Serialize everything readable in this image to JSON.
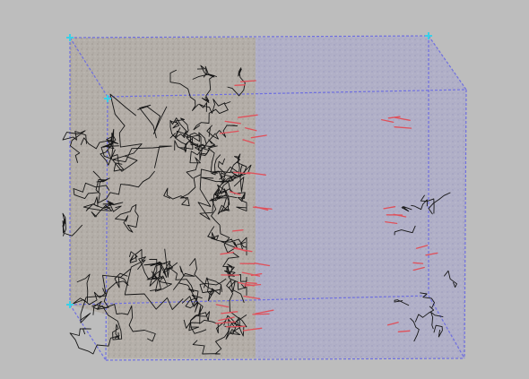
{
  "scene": {
    "description_visible_text": "",
    "colors": {
      "background": "#bdbdbd",
      "box_edges": "#6f6fe0",
      "box_corner_markers": "#39d0e8",
      "particle_region_left": "#b2aca6",
      "particle_region_right": "#aeadc6",
      "polymer_chains": "#151515",
      "end_groups": "#e0505a"
    },
    "icons": {
      "corner_marker": "cross-marker-icon"
    }
  }
}
